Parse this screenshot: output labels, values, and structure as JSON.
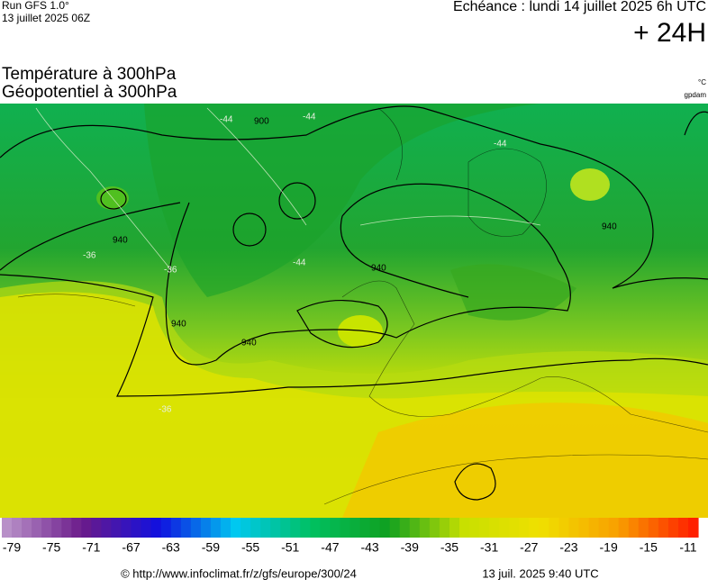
{
  "header": {
    "run": "Run GFS 1.0°",
    "run_date": "13 juillet 2025 06Z",
    "forecast": "Echéance : lundi 14 juillet 2025 6h UTC",
    "lead": "+ 24H"
  },
  "titles": [
    "Température à 300hPa",
    "Géopotentiel à 300hPa"
  ],
  "units": [
    "°C",
    "gpdam"
  ],
  "map": {
    "labels": [
      "900",
      "940",
      "940",
      "940",
      "940",
      "940",
      "-44",
      "-44",
      "-44",
      "-44",
      "-36",
      "-36",
      "-36"
    ]
  },
  "scale": {
    "ticks": [
      -79,
      -75,
      -71,
      -67,
      -63,
      -59,
      -55,
      -51,
      -47,
      -43,
      -39,
      -35,
      -31,
      -27,
      -23,
      -19,
      -15,
      -11
    ],
    "color_stops": [
      "#b890c8",
      "#6a1a8a",
      "#1010e0",
      "#00c8f0",
      "#00c060",
      "#10a020",
      "#c8e000",
      "#f0e000",
      "#f8a000",
      "#ff2000"
    ]
  },
  "footer": {
    "url": "© http://www.infoclimat.fr/z/gfs/europe/300/24",
    "timestamp": "13 juil. 2025  9:40 UTC"
  }
}
